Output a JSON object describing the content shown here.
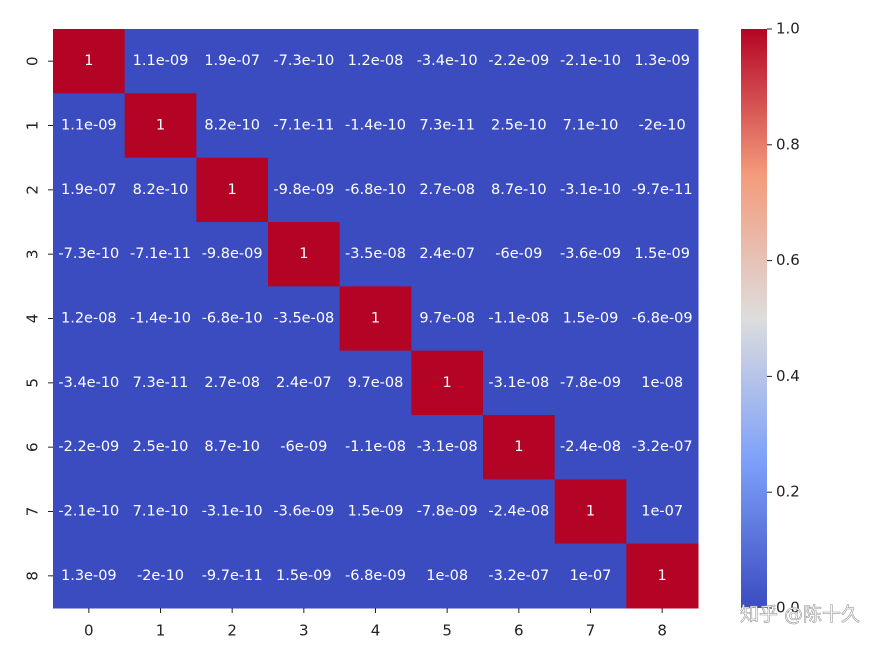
{
  "chart_data": {
    "type": "heatmap",
    "x_categories": [
      "0",
      "1",
      "2",
      "3",
      "4",
      "5",
      "6",
      "7",
      "8"
    ],
    "y_categories": [
      "0",
      "1",
      "2",
      "3",
      "4",
      "5",
      "6",
      "7",
      "8"
    ],
    "values": [
      [
        1,
        1.1e-09,
        1.9e-07,
        -7.3e-10,
        1.2e-08,
        -3.4e-10,
        -2.2e-09,
        -2.1e-10,
        1.3e-09
      ],
      [
        1.1e-09,
        1,
        8.2e-10,
        -7.1e-11,
        -1.4e-10,
        7.3e-11,
        2.5e-10,
        7.1e-10,
        -2e-10
      ],
      [
        1.9e-07,
        8.2e-10,
        1,
        -9.8e-09,
        -6.8e-10,
        2.7e-08,
        8.7e-10,
        -3.1e-10,
        -9.7e-11
      ],
      [
        -7.3e-10,
        -7.1e-11,
        -9.8e-09,
        1,
        -3.5e-08,
        2.4e-07,
        -6e-09,
        -3.6e-09,
        1.5e-09
      ],
      [
        1.2e-08,
        -1.4e-10,
        -6.8e-10,
        -3.5e-08,
        1,
        9.7e-08,
        -1.1e-08,
        1.5e-09,
        -6.8e-09
      ],
      [
        -3.4e-10,
        7.3e-11,
        2.7e-08,
        2.4e-07,
        9.7e-08,
        1,
        -3.1e-08,
        -7.8e-09,
        1e-08
      ],
      [
        -2.2e-09,
        2.5e-10,
        8.7e-10,
        -6e-09,
        -1.1e-08,
        -3.1e-08,
        1,
        -2.4e-08,
        -3.2e-07
      ],
      [
        -2.1e-10,
        7.1e-10,
        -3.1e-10,
        -3.6e-09,
        1.5e-09,
        -7.8e-09,
        -2.4e-08,
        1,
        1e-07
      ],
      [
        1.3e-09,
        -2e-10,
        -9.7e-11,
        1.5e-09,
        -6.8e-09,
        1e-08,
        -3.2e-07,
        1e-07,
        1
      ]
    ],
    "value_labels": [
      [
        "1",
        "1.1e-09",
        "1.9e-07",
        "-7.3e-10",
        "1.2e-08",
        "-3.4e-10",
        "-2.2e-09",
        "-2.1e-10",
        "1.3e-09"
      ],
      [
        "1.1e-09",
        "1",
        "8.2e-10",
        "-7.1e-11",
        "-1.4e-10",
        "7.3e-11",
        "2.5e-10",
        "7.1e-10",
        "-2e-10"
      ],
      [
        "1.9e-07",
        "8.2e-10",
        "1",
        "-9.8e-09",
        "-6.8e-10",
        "2.7e-08",
        "8.7e-10",
        "-3.1e-10",
        "-9.7e-11"
      ],
      [
        "-7.3e-10",
        "-7.1e-11",
        "-9.8e-09",
        "1",
        "-3.5e-08",
        "2.4e-07",
        "-6e-09",
        "-3.6e-09",
        "1.5e-09"
      ],
      [
        "1.2e-08",
        "-1.4e-10",
        "-6.8e-10",
        "-3.5e-08",
        "1",
        "9.7e-08",
        "-1.1e-08",
        "1.5e-09",
        "-6.8e-09"
      ],
      [
        "-3.4e-10",
        "7.3e-11",
        "2.7e-08",
        "2.4e-07",
        "9.7e-08",
        "1",
        "-3.1e-08",
        "-7.8e-09",
        "1e-08"
      ],
      [
        "-2.2e-09",
        "2.5e-10",
        "8.7e-10",
        "-6e-09",
        "-1.1e-08",
        "-3.1e-08",
        "1",
        "-2.4e-08",
        "-3.2e-07"
      ],
      [
        "-2.1e-10",
        "7.1e-10",
        "-3.1e-10",
        "-3.6e-09",
        "1.5e-09",
        "-7.8e-09",
        "-2.4e-08",
        "1",
        "1e-07"
      ],
      [
        "1.3e-09",
        "-2e-10",
        "-9.7e-11",
        "1.5e-09",
        "-6.8e-09",
        "1e-08",
        "-3.2e-07",
        "1e-07",
        "1"
      ]
    ],
    "colormap": "coolwarm",
    "clim": [
      0,
      1
    ],
    "cticks": [
      {
        "value": 0,
        "label": "0.0"
      },
      0.2,
      0.4,
      0.6,
      0.8,
      {
        "value": 1,
        "label": "1.0"
      }
    ]
  },
  "watermark": "知乎 @陈十久"
}
